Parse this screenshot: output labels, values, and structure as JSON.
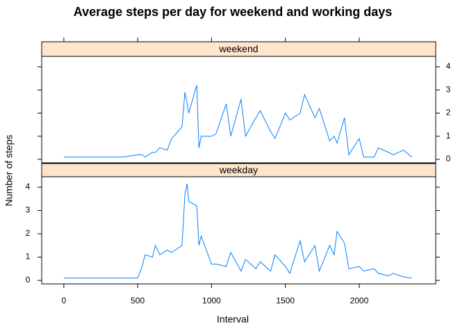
{
  "chart_data": {
    "type": "line",
    "title": "Average steps per day for weekend and working days",
    "xlabel": "Interval",
    "ylabel": "Number of steps",
    "color": "#0080ff",
    "xlim": [
      -150,
      2518
    ],
    "ylim": [
      -0.15,
      4.45
    ],
    "xticks": [
      0,
      500,
      1000,
      1500,
      2000
    ],
    "yticks": [
      0,
      1,
      2,
      3,
      4
    ],
    "x": [
      0,
      100,
      200,
      300,
      400,
      500,
      530,
      550,
      600,
      620,
      650,
      700,
      730,
      800,
      820,
      835,
      845,
      900,
      915,
      930,
      1000,
      1030,
      1100,
      1130,
      1200,
      1230,
      1300,
      1330,
      1400,
      1430,
      1500,
      1530,
      1600,
      1630,
      1700,
      1730,
      1800,
      1830,
      1850,
      1900,
      1930,
      2000,
      2030,
      2100,
      2130,
      2200,
      2230,
      2300,
      2355
    ],
    "series": [
      {
        "name": "weekend",
        "values": [
          0.1,
          0.1,
          0.1,
          0.1,
          0.1,
          0.2,
          0.2,
          0.1,
          0.3,
          0.3,
          0.5,
          0.4,
          0.9,
          1.4,
          2.9,
          2.4,
          2.0,
          3.2,
          0.5,
          1.0,
          1.0,
          1.1,
          2.4,
          1.0,
          2.6,
          1.0,
          1.8,
          2.1,
          1.2,
          0.9,
          2.0,
          1.7,
          2.0,
          2.8,
          1.8,
          2.2,
          0.8,
          1.0,
          0.7,
          1.8,
          0.2,
          0.9,
          0.1,
          0.1,
          0.5,
          0.3,
          0.2,
          0.4,
          0.1
        ]
      },
      {
        "name": "weekday",
        "values": [
          0.1,
          0.1,
          0.1,
          0.1,
          0.1,
          0.1,
          0.6,
          1.1,
          1.0,
          1.5,
          1.1,
          1.3,
          1.2,
          1.5,
          3.7,
          4.15,
          3.4,
          3.2,
          1.5,
          1.9,
          0.7,
          0.7,
          0.6,
          1.2,
          0.4,
          0.9,
          0.5,
          0.8,
          0.4,
          1.1,
          0.6,
          0.3,
          1.7,
          0.8,
          1.5,
          0.4,
          1.5,
          1.1,
          2.1,
          1.6,
          0.5,
          0.6,
          0.4,
          0.5,
          0.3,
          0.2,
          0.3,
          0.15,
          0.1
        ]
      }
    ]
  }
}
